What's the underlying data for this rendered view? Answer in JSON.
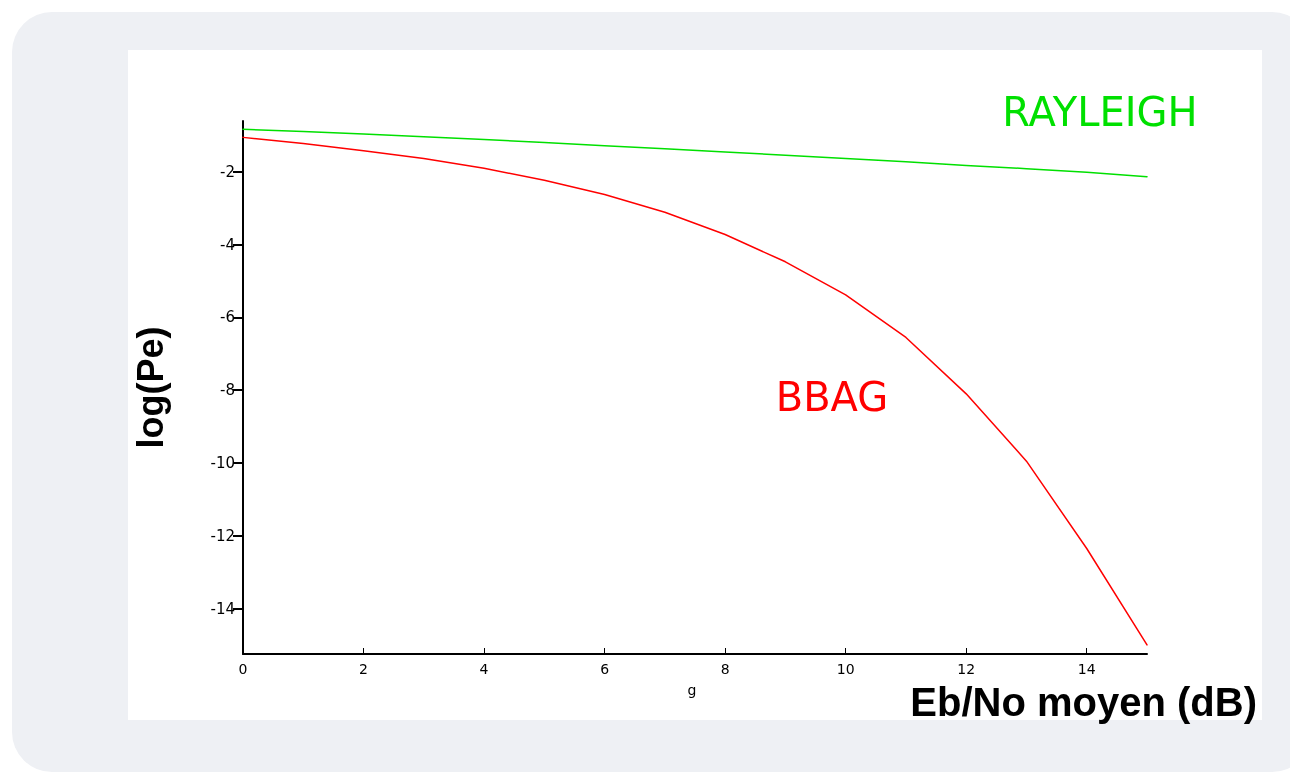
{
  "chart_data": {
    "type": "line",
    "xlabel": "Eb/No moyen (dB)",
    "ylabel": "log(Pe)",
    "x": [
      0,
      1,
      2,
      3,
      4,
      5,
      6,
      7,
      8,
      9,
      10,
      11,
      12,
      13,
      14,
      15
    ],
    "series": [
      {
        "name": "RAYLEIGH",
        "color": "#00e000",
        "values": [
          -0.83,
          -0.89,
          -0.96,
          -1.03,
          -1.11,
          -1.19,
          -1.28,
          -1.36,
          -1.45,
          -1.54,
          -1.63,
          -1.72,
          -1.82,
          -1.91,
          -2.01,
          -2.13
        ]
      },
      {
        "name": "BBAG",
        "color": "#ff0000",
        "values": [
          -1.05,
          -1.22,
          -1.42,
          -1.63,
          -1.9,
          -2.23,
          -2.62,
          -3.11,
          -3.72,
          -4.47,
          -5.38,
          -6.55,
          -8.1,
          -9.95,
          -12.35,
          -15.0
        ]
      }
    ],
    "xlim": [
      0,
      15
    ],
    "xticks": [
      0,
      2,
      4,
      6,
      8,
      10,
      12,
      14
    ],
    "ylim": [
      -15.25,
      -0.6
    ],
    "yticks": [
      -2,
      -4,
      -6,
      -8,
      -10,
      -12,
      -14
    ],
    "annotations": [
      "g"
    ],
    "grid": false,
    "legend": false,
    "marker": "none",
    "line_style": "solid"
  }
}
